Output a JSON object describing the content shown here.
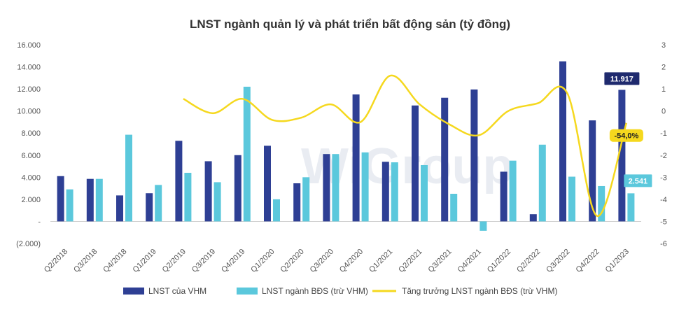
{
  "chart_data": {
    "type": "bar",
    "title": "LNST ngành quản lý và phát triển bất động sản (tỷ đồng)",
    "categories": [
      "Q2/2018",
      "Q3/2018",
      "Q4/2018",
      "Q1/2019",
      "Q2/2019",
      "Q3/2019",
      "Q4/2019",
      "Q1/2020",
      "Q2/2020",
      "Q3/2020",
      "Q4/2020",
      "Q1/2021",
      "Q2/2021",
      "Q3/2021",
      "Q4/2021",
      "Q1/2022",
      "Q2/2022",
      "Q3/2022",
      "Q4/2022",
      "Q1/2023"
    ],
    "series": [
      {
        "name": "LNST của VHM",
        "type": "bar",
        "axis": "left",
        "color": "#2e3f94",
        "values": [
          4100,
          3850,
          2350,
          2550,
          7300,
          5450,
          6000,
          6850,
          3450,
          6100,
          11500,
          5400,
          10500,
          11200,
          11950,
          4500,
          650,
          14500,
          9150,
          11917
        ]
      },
      {
        "name": "LNST ngành BĐS (trừ VHM)",
        "type": "bar",
        "axis": "left",
        "color": "#5bc8dc",
        "values": [
          2900,
          3850,
          7850,
          3300,
          4400,
          3550,
          12200,
          2000,
          4000,
          6100,
          6250,
          5350,
          5100,
          2500,
          -850,
          5500,
          6950,
          4050,
          3200,
          2541
        ]
      },
      {
        "name": "Tăng trưởng LNST ngành BĐS (trừ VHM)",
        "type": "line",
        "axis": "right",
        "color": "#f5d81e",
        "values": [
          null,
          null,
          null,
          null,
          0.55,
          -0.1,
          0.55,
          -0.4,
          -0.3,
          0.3,
          -0.5,
          1.6,
          0.3,
          -0.6,
          -1.1,
          0.0,
          0.35,
          0.8,
          -4.75,
          -0.54
        ]
      }
    ],
    "y_left": {
      "min": -2000,
      "max": 16000,
      "step": 2000,
      "tick_labels": [
        "(2.000)",
        "-",
        "2.000",
        "4.000",
        "6.000",
        "8.000",
        "10.000",
        "12.000",
        "14.000",
        "16.000"
      ]
    },
    "y_right": {
      "min": -6,
      "max": 3,
      "step": 1,
      "tick_labels": [
        "-6",
        "-5",
        "-4",
        "-3",
        "-2",
        "-1",
        "0",
        "1",
        "2",
        "3"
      ]
    },
    "annotations": [
      {
        "text": "11.917",
        "series": 0,
        "index": 19,
        "bg": "#1f2a6e",
        "fg": "#ffffff"
      },
      {
        "text": "-54,0%",
        "series": 2,
        "index": 19,
        "bg": "#f5d81e",
        "fg": "#222222"
      },
      {
        "text": "2.541",
        "series": 1,
        "index": 19,
        "bg": "#5bc8dc",
        "fg": "#ffffff"
      }
    ],
    "legend_position": "bottom",
    "grid": false
  },
  "watermark": "WiGroup"
}
